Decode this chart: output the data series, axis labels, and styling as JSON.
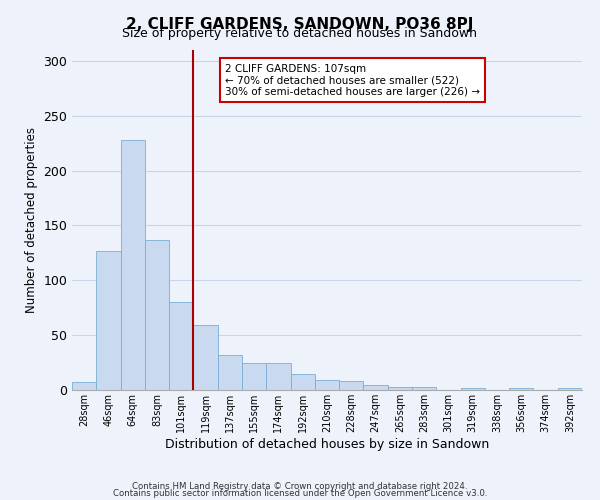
{
  "title": "2, CLIFF GARDENS, SANDOWN, PO36 8PJ",
  "subtitle": "Size of property relative to detached houses in Sandown",
  "xlabel": "Distribution of detached houses by size in Sandown",
  "ylabel": "Number of detached properties",
  "bar_labels": [
    "28sqm",
    "46sqm",
    "64sqm",
    "83sqm",
    "101sqm",
    "119sqm",
    "137sqm",
    "155sqm",
    "174sqm",
    "192sqm",
    "210sqm",
    "228sqm",
    "247sqm",
    "265sqm",
    "283sqm",
    "301sqm",
    "319sqm",
    "338sqm",
    "356sqm",
    "374sqm",
    "392sqm"
  ],
  "bar_values": [
    7,
    127,
    228,
    137,
    80,
    59,
    32,
    25,
    25,
    15,
    9,
    8,
    5,
    3,
    3,
    0,
    2,
    0,
    2,
    0,
    2
  ],
  "bar_color": "#c9d9f0",
  "bar_edge_color": "#7aadd4",
  "vline_x_index": 4,
  "vline_color": "#aa0000",
  "annotation_text": "2 CLIFF GARDENS: 107sqm\n← 70% of detached houses are smaller (522)\n30% of semi-detached houses are larger (226) →",
  "annotation_box_facecolor": "#ffffff",
  "annotation_box_edgecolor": "#cc0000",
  "ylim": [
    0,
    310
  ],
  "yticks": [
    0,
    50,
    100,
    150,
    200,
    250,
    300
  ],
  "footer_line1": "Contains HM Land Registry data © Crown copyright and database right 2024.",
  "footer_line2": "Contains public sector information licensed under the Open Government Licence v3.0.",
  "background_color": "#eef2fb",
  "grid_color": "#c8d4e8"
}
